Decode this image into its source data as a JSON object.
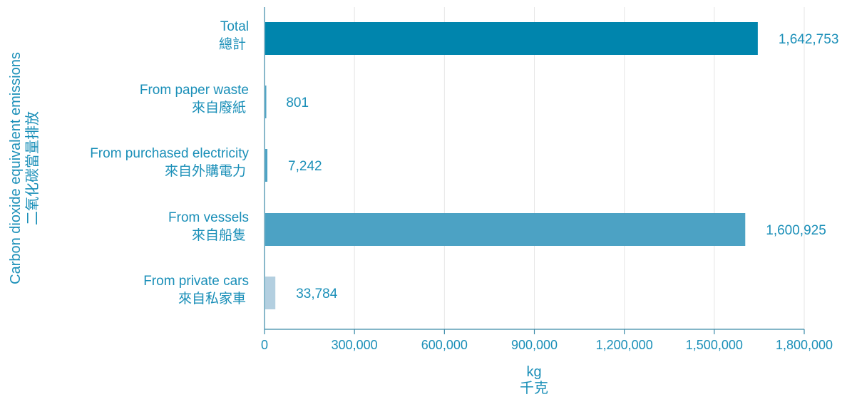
{
  "colors": {
    "text": "#1a8fb8",
    "axis": "#3a8aa8",
    "grid": "#e6e6e6",
    "bar_dark": "#0085ad",
    "bar_mid": "#4ca2c4",
    "bar_light": "#b3cfe0"
  },
  "chart_data": {
    "type": "bar",
    "orientation": "horizontal",
    "ylabel": "Carbon dioxide equivalent emissions",
    "ylabel_zh": "二氧化碳當量排放",
    "xlabel": "kg",
    "xlabel_zh": "千克",
    "xlim": [
      0,
      1800000
    ],
    "xticks": [
      "0",
      "300,000",
      "600,000",
      "900,000",
      "1,200,000",
      "1,500,000",
      "1,800,000"
    ],
    "grid": true,
    "categories": [
      {
        "en": "Total",
        "zh": "總計"
      },
      {
        "en": "From paper waste",
        "zh": "來自廢紙"
      },
      {
        "en": "From purchased electricity",
        "zh": "來自外購電力"
      },
      {
        "en": "From vessels",
        "zh": "來自船隻"
      },
      {
        "en": "From private cars",
        "zh": "來自私家車"
      }
    ],
    "values": [
      1642753,
      801,
      7242,
      1600925,
      33784
    ],
    "value_labels": [
      "1,642,753",
      "801",
      "7,242",
      "1,600,925",
      "33,784"
    ],
    "bar_colors": [
      "#0085ad",
      "#4ca2c4",
      "#4ca2c4",
      "#4ca2c4",
      "#b3cfe0"
    ]
  }
}
